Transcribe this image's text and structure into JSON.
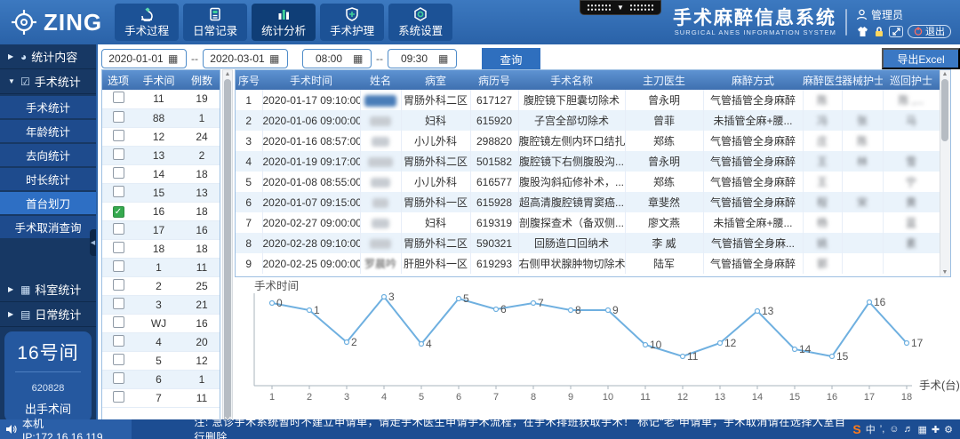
{
  "header": {
    "logo_text": "ZING",
    "nav": [
      {
        "label": "手术过程",
        "icon": "microscope-icon",
        "active": false
      },
      {
        "label": "日常记录",
        "icon": "journal-icon",
        "active": false
      },
      {
        "label": "统计分析",
        "icon": "bar-chart-icon",
        "active": true
      },
      {
        "label": "手术护理",
        "icon": "shield-plus-icon",
        "active": false
      },
      {
        "label": "系统设置",
        "icon": "hexagon-gear-icon",
        "active": false
      }
    ],
    "title_cn": "手术麻醉信息系统",
    "title_en": "SURGICAL ANES INFORMATION SYSTEM",
    "user": {
      "name": "管理员",
      "logout_label": "退出"
    }
  },
  "sidebar": {
    "groups": [
      {
        "label": "统计内容",
        "state": "collapsed",
        "icon": "pie-icon"
      },
      {
        "label": "手术统计",
        "state": "expanded",
        "icon": "checkbox-icon",
        "children": [
          "手术统计",
          "年龄统计",
          "去向统计",
          "时长统计",
          "首台划刀",
          "手术取消查询"
        ],
        "selected_index": 4
      },
      {
        "label": "科室统计",
        "state": "collapsed",
        "icon": "grid-icon"
      },
      {
        "label": "日常统计",
        "state": "collapsed",
        "icon": "doc-icon"
      }
    ],
    "room_panel": {
      "room": "16号间",
      "code": "620828",
      "action": "出手术间"
    }
  },
  "filters": {
    "date_from": "2020-01-01",
    "date_to": "2020-03-01",
    "time_from": "08:00",
    "time_to": "09:30",
    "range_sep": "--",
    "query_label": "查询",
    "export_label": "导出Excel"
  },
  "room_table": {
    "headers": [
      "选项",
      "手术间",
      "例数"
    ],
    "rows": [
      {
        "room": "11",
        "count": "19",
        "checked": false
      },
      {
        "room": "88",
        "count": "1",
        "checked": false
      },
      {
        "room": "12",
        "count": "24",
        "checked": false
      },
      {
        "room": "13",
        "count": "2",
        "checked": false
      },
      {
        "room": "14",
        "count": "18",
        "checked": false
      },
      {
        "room": "15",
        "count": "13",
        "checked": false
      },
      {
        "room": "16",
        "count": "18",
        "checked": true
      },
      {
        "room": "17",
        "count": "16",
        "checked": false
      },
      {
        "room": "18",
        "count": "18",
        "checked": false
      },
      {
        "room": "1",
        "count": "11",
        "checked": false
      },
      {
        "room": "2",
        "count": "25",
        "checked": false
      },
      {
        "room": "3",
        "count": "21",
        "checked": false
      },
      {
        "room": "WJ",
        "count": "16",
        "checked": false
      },
      {
        "room": "4",
        "count": "20",
        "checked": false
      },
      {
        "room": "5",
        "count": "12",
        "checked": false
      },
      {
        "room": "6",
        "count": "1",
        "checked": false
      },
      {
        "room": "7",
        "count": "11",
        "checked": false
      }
    ]
  },
  "surgery_table": {
    "headers": [
      "序号",
      "手术时间",
      "姓名",
      "病室",
      "病历号",
      "手术名称",
      "主刀医生",
      "麻醉方式",
      "麻醉医生",
      "器械护士",
      "巡回护士"
    ],
    "rows": [
      {
        "seq": "1",
        "time": "2020-01-17 09:10:00",
        "patient": "",
        "ward": "胃肠外科二区",
        "record_no": "617127",
        "surgery": "腹腔镜下胆囊切除术",
        "surgeon": "曾永明",
        "anesthesia": "气管插管全身麻醉",
        "anesthetist": "陈",
        "scrub_nurse": "",
        "circulating_nurse": "陈 ,..."
      },
      {
        "seq": "2",
        "time": "2020-01-06 09:00:00",
        "patient": "",
        "ward": "妇科",
        "record_no": "615920",
        "surgery": "子宫全部切除术",
        "surgeon": "曾菲",
        "anesthesia": "未插管全麻+腰...",
        "anesthetist": "冯",
        "scrub_nurse": "张",
        "circulating_nurse": "马"
      },
      {
        "seq": "3",
        "time": "2020-01-16 08:57:00",
        "patient": "",
        "ward": "小儿外科",
        "record_no": "298820",
        "surgery": "腹腔镜左侧内环口结扎术",
        "surgeon": "郑练",
        "anesthesia": "气管插管全身麻醉",
        "anesthetist": "庄",
        "scrub_nurse": "陈",
        "circulating_nurse": ""
      },
      {
        "seq": "4",
        "time": "2020-01-19 09:17:00",
        "patient": "",
        "ward": "胃肠外科二区",
        "record_no": "501582",
        "surgery": "腹腔镜下右侧腹股沟...",
        "surgeon": "曾永明",
        "anesthesia": "气管插管全身麻醉",
        "anesthetist": "王",
        "scrub_nurse": "林",
        "circulating_nurse": "雪"
      },
      {
        "seq": "5",
        "time": "2020-01-08 08:55:00",
        "patient": "",
        "ward": "小儿外科",
        "record_no": "616577",
        "surgery": "腹股沟斜疝修补术，...",
        "surgeon": "郑练",
        "anesthesia": "气管插管全身麻醉",
        "anesthetist": "王",
        "scrub_nurse": "",
        "circulating_nurse": "宁"
      },
      {
        "seq": "6",
        "time": "2020-01-07 09:15:00",
        "patient": "",
        "ward": "胃肠外科一区",
        "record_no": "615928",
        "surgery": "超高清腹腔镜胃窦癌...",
        "surgeon": "章斐然",
        "anesthesia": "气管插管全身麻醉",
        "anesthetist": "程",
        "scrub_nurse": "宋",
        "circulating_nurse": "黄"
      },
      {
        "seq": "7",
        "time": "2020-02-27 09:00:00",
        "patient": "",
        "ward": "妇科",
        "record_no": "619319",
        "surgery": "剖腹探查术（备双侧...",
        "surgeon": "廖文燕",
        "anesthesia": "未插管全麻+腰...",
        "anesthetist": "杨",
        "scrub_nurse": "",
        "circulating_nurse": "蓝"
      },
      {
        "seq": "8",
        "time": "2020-02-28 09:10:00",
        "patient": "",
        "ward": "胃肠外科二区",
        "record_no": "590321",
        "surgery": "回肠造口回纳术",
        "surgeon": "李 威",
        "anesthesia": "气管插管全身麻...",
        "anesthetist": "姚",
        "scrub_nurse": "",
        "circulating_nurse": "素"
      },
      {
        "seq": "9",
        "time": "2020-02-25 09:00:00",
        "patient": "罗晨吟",
        "ward": "肝胆外科一区",
        "record_no": "619293",
        "surgery": "右侧甲状腺肿物切除术",
        "surgeon": "陆军",
        "anesthesia": "气管插管全身麻醉",
        "anesthetist": "郭",
        "scrub_nurse": "",
        "circulating_nurse": ""
      }
    ]
  },
  "chart_data": {
    "type": "line",
    "title": "手术时间",
    "xlabel": "手术(台)",
    "ylabel": "",
    "x": [
      1,
      2,
      3,
      4,
      5,
      6,
      7,
      8,
      9,
      10,
      11,
      12,
      13,
      14,
      15,
      16,
      17,
      18
    ],
    "point_labels": [
      "0",
      "1",
      "2",
      "3",
      "4",
      "5",
      "6",
      "7",
      "8",
      "9",
      "10",
      "11",
      "12",
      "13",
      "14",
      "15",
      "16",
      "17"
    ],
    "values": [
      93,
      85,
      49,
      100,
      47,
      98,
      86,
      93,
      85,
      85,
      46,
      33,
      48,
      84,
      41,
      33,
      94,
      48
    ],
    "y_axis_note": "axis unlabeled - relative surgery start time per case",
    "line_color": "#6fb0e0",
    "grid": false,
    "legend": "none"
  },
  "statusbar": {
    "ip_label": "本机IP:172.16.16.119",
    "note": "注: 急诊手术系统暂时不建立申请单，请走手术医生申请手术流程，在手术排班获取手术！ 标记“老”申请单，手术取消请在选择入室自行删除",
    "tray": [
      "S",
      "中",
      "’,",
      "☺",
      "♬",
      "▦",
      "✚",
      "⚙"
    ]
  }
}
